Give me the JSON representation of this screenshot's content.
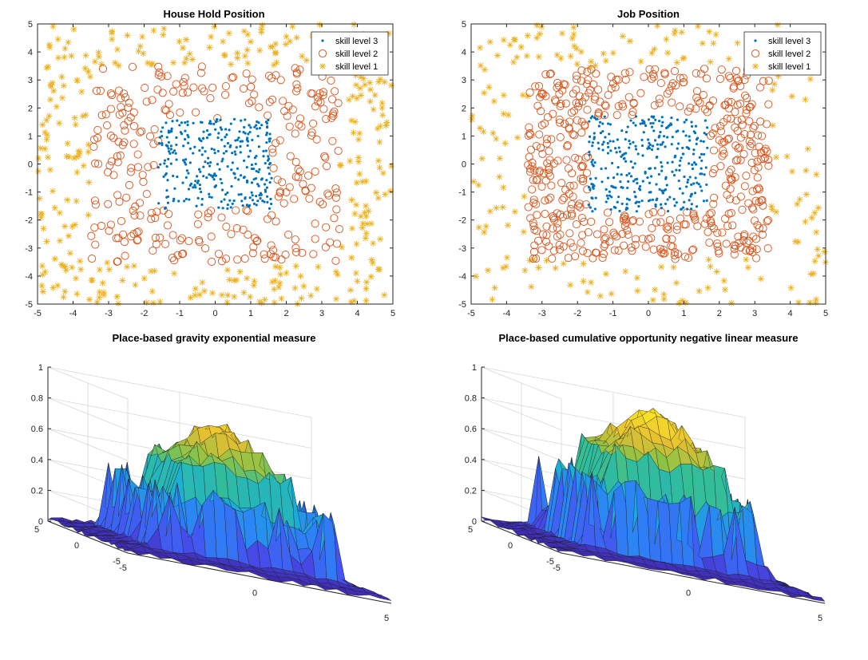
{
  "colors": {
    "skill3": "#0072BD",
    "skill2": "#D95319",
    "skill1": "#EDB120",
    "surface_low": "#3e26a8",
    "surface_mid": "#2ab6c8",
    "surface_high": "#f9d72b"
  },
  "chart_data": [
    {
      "type": "scatter",
      "title": "House Hold Position",
      "xlim": [
        -5,
        5
      ],
      "ylim": [
        -5,
        5
      ],
      "xticks": [
        "-5",
        "-4",
        "-3",
        "-2",
        "-1",
        "0",
        "1",
        "2",
        "3",
        "4",
        "5"
      ],
      "yticks": [
        "5",
        "4",
        "3",
        "2",
        "1",
        "0",
        "-1",
        "-2",
        "-3",
        "-4",
        "-5"
      ],
      "legend_position": "top-right",
      "grid": false,
      "series": [
        {
          "name": "skill level 3",
          "marker": "dot",
          "region": "square |x|,|y| <= 1.6",
          "count": 320
        },
        {
          "name": "skill level 2",
          "marker": "circle",
          "region": "square |x|,|y| <= 3.5, excluding inner square",
          "count": 300
        },
        {
          "name": "skill level 1",
          "marker": "asterisk",
          "region": "square |x|,|y| <= 5, excluding middle square",
          "count": 330
        }
      ]
    },
    {
      "type": "scatter",
      "title": "Job Position",
      "xlim": [
        -5,
        5
      ],
      "ylim": [
        -5,
        5
      ],
      "xticks": [
        "-5",
        "-4",
        "-3",
        "-2",
        "-1",
        "0",
        "1",
        "2",
        "3",
        "4",
        "5"
      ],
      "yticks": [
        "5",
        "4",
        "3",
        "2",
        "1",
        "0",
        "-1",
        "-2",
        "-3",
        "-4",
        "-5"
      ],
      "legend_position": "top-right",
      "grid": false,
      "series": [
        {
          "name": "skill level 3",
          "marker": "dot",
          "region": "square |x|,|y| <= 1.7",
          "count": 330
        },
        {
          "name": "skill level 2",
          "marker": "circle",
          "region": "square |x|,|y| <= 3.4, excluding inner square",
          "count": 520
        },
        {
          "name": "skill level 1",
          "marker": "asterisk",
          "region": "square |x|,|y| <= 5, excluding middle square",
          "count": 190
        }
      ]
    },
    {
      "type": "surface",
      "title": "Place-based gravity exponential measure",
      "zlim": [
        0,
        1
      ],
      "zticks": [
        "0",
        "0.2",
        "0.4",
        "0.6",
        "0.8",
        "1"
      ],
      "x_ticks": [
        "-5",
        "0",
        "5"
      ],
      "y_ticks": [
        "5",
        "0",
        "-5"
      ],
      "peak_z": 0.85,
      "plateau_z": 0.55,
      "edge_z": 0.05
    },
    {
      "type": "surface",
      "title": "Place-based cumulative opportunity negative linear measure",
      "zlim": [
        0,
        1
      ],
      "zticks": [
        "0",
        "0.2",
        "0.4",
        "0.6",
        "0.8",
        "1"
      ],
      "x_ticks": [
        "-5",
        "0",
        "5"
      ],
      "y_ticks": [
        "5",
        "0",
        "-5"
      ],
      "peak_z": 0.95,
      "plateau_z": 0.62,
      "edge_z": 0.05
    }
  ]
}
